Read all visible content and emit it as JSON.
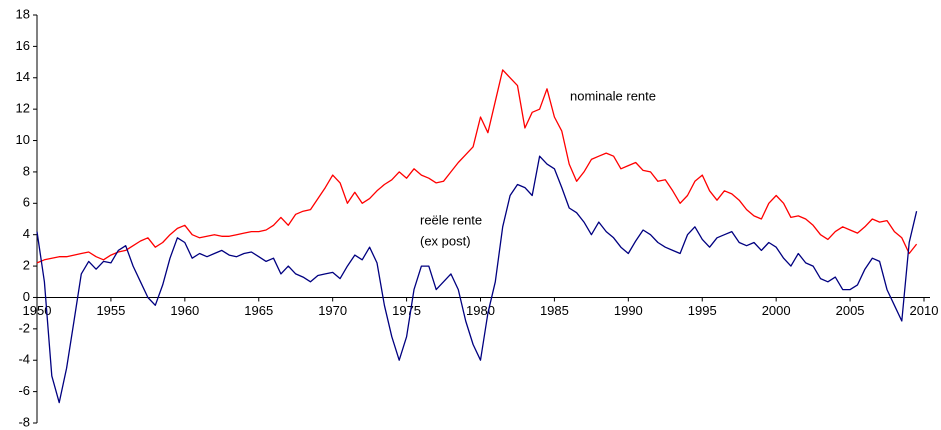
{
  "chart_data": {
    "type": "line",
    "annotations": [
      "nominale rente",
      "reële rente",
      "(ex post)"
    ],
    "x": [
      1950,
      1950.5,
      1951,
      1951.5,
      1952,
      1952.5,
      1953,
      1953.5,
      1954,
      1954.5,
      1955,
      1955.5,
      1956,
      1956.5,
      1957,
      1957.5,
      1958,
      1958.5,
      1959,
      1959.5,
      1960,
      1960.5,
      1961,
      1961.5,
      1962,
      1962.5,
      1963,
      1963.5,
      1964,
      1964.5,
      1965,
      1965.5,
      1966,
      1966.5,
      1967,
      1967.5,
      1968,
      1968.5,
      1969,
      1969.5,
      1970,
      1970.5,
      1971,
      1971.5,
      1972,
      1972.5,
      1973,
      1973.5,
      1974,
      1974.5,
      1975,
      1975.5,
      1976,
      1976.5,
      1977,
      1977.5,
      1978,
      1978.5,
      1979,
      1979.5,
      1980,
      1980.5,
      1981,
      1981.5,
      1982,
      1982.5,
      1983,
      1983.5,
      1984,
      1984.5,
      1985,
      1985.5,
      1986,
      1986.5,
      1987,
      1987.5,
      1988,
      1988.5,
      1989,
      1989.5,
      1990,
      1990.5,
      1991,
      1991.5,
      1992,
      1992.5,
      1993,
      1993.5,
      1994,
      1994.5,
      1995,
      1995.5,
      1996,
      1996.5,
      1997,
      1997.5,
      1998,
      1998.5,
      1999,
      1999.5,
      2000,
      2000.5,
      2001,
      2001.5,
      2002,
      2002.5,
      2003,
      2003.5,
      2004,
      2004.5,
      2005,
      2005.5,
      2006,
      2006.5,
      2007,
      2007.5,
      2008,
      2008.5,
      2009,
      2009.5
    ],
    "series": [
      {
        "color": "#ff0000",
        "values": [
          2.2,
          2.4,
          2.5,
          2.6,
          2.6,
          2.7,
          2.8,
          2.9,
          2.6,
          2.4,
          2.7,
          2.9,
          3.0,
          3.3,
          3.6,
          3.8,
          3.2,
          3.5,
          4.0,
          4.4,
          4.6,
          4.0,
          3.8,
          3.9,
          4.0,
          3.9,
          3.9,
          4.0,
          4.1,
          4.2,
          4.2,
          4.3,
          4.6,
          5.1,
          4.6,
          5.3,
          5.5,
          5.6,
          6.3,
          7.0,
          7.8,
          7.3,
          6.0,
          6.7,
          6.0,
          6.3,
          6.8,
          7.2,
          7.5,
          8.0,
          7.6,
          8.2,
          7.8,
          7.6,
          7.3,
          7.4,
          8.0,
          8.6,
          9.1,
          9.6,
          11.5,
          10.5,
          12.5,
          14.5,
          14.0,
          13.5,
          10.8,
          11.8,
          12.0,
          13.3,
          11.5,
          10.6,
          8.5,
          7.4,
          8.0,
          8.8,
          9.0,
          9.2,
          9.0,
          8.2,
          8.4,
          8.6,
          8.1,
          8.0,
          7.4,
          7.5,
          6.8,
          6.0,
          6.5,
          7.4,
          7.8,
          6.8,
          6.2,
          6.8,
          6.6,
          6.2,
          5.6,
          5.2,
          5.0,
          6.0,
          6.5,
          6.0,
          5.1,
          5.2,
          5.0,
          4.6,
          4.0,
          3.7,
          4.2,
          4.5,
          4.3,
          4.1,
          4.5,
          5.0,
          4.8,
          4.9,
          4.2,
          3.8,
          2.8,
          3.4
        ]
      },
      {
        "color": "#000080",
        "values": [
          4.2,
          1.0,
          -5.0,
          -6.7,
          -4.5,
          -1.5,
          1.5,
          2.3,
          1.8,
          2.3,
          2.2,
          3.0,
          3.3,
          2.0,
          1.0,
          0.0,
          -0.5,
          0.8,
          2.5,
          3.8,
          3.5,
          2.5,
          2.8,
          2.6,
          2.8,
          3.0,
          2.7,
          2.6,
          2.8,
          2.9,
          2.6,
          2.3,
          2.5,
          1.5,
          2.0,
          1.5,
          1.3,
          1.0,
          1.4,
          1.5,
          1.6,
          1.2,
          2.0,
          2.7,
          2.4,
          3.2,
          2.2,
          -0.5,
          -2.5,
          -4.0,
          -2.5,
          0.5,
          2.0,
          2.0,
          0.5,
          1.0,
          1.5,
          0.5,
          -1.5,
          -3.0,
          -4.0,
          -1.0,
          1.0,
          4.5,
          6.5,
          7.2,
          7.0,
          6.5,
          9.0,
          8.5,
          8.2,
          7.0,
          5.7,
          5.4,
          4.8,
          4.0,
          4.8,
          4.2,
          3.8,
          3.2,
          2.8,
          3.6,
          4.3,
          4.0,
          3.5,
          3.2,
          3.0,
          2.8,
          4.0,
          4.5,
          3.7,
          3.2,
          3.8,
          4.0,
          4.2,
          3.5,
          3.3,
          3.5,
          3.0,
          3.5,
          3.2,
          2.5,
          2.0,
          2.8,
          2.2,
          2.0,
          1.2,
          1.0,
          1.3,
          0.5,
          0.5,
          0.8,
          1.8,
          2.5,
          2.3,
          0.5,
          -0.5,
          -1.5,
          3.5,
          5.5
        ]
      }
    ],
    "xlim": [
      1950,
      2010
    ],
    "xticks": [
      1950,
      1955,
      1960,
      1965,
      1970,
      1975,
      1980,
      1985,
      1990,
      1995,
      2000,
      2005,
      2010
    ],
    "ylim": [
      -8,
      18
    ],
    "yticks": [
      -8,
      -6,
      -4,
      -2,
      0,
      2,
      4,
      6,
      8,
      10,
      12,
      14,
      16,
      18
    ]
  }
}
